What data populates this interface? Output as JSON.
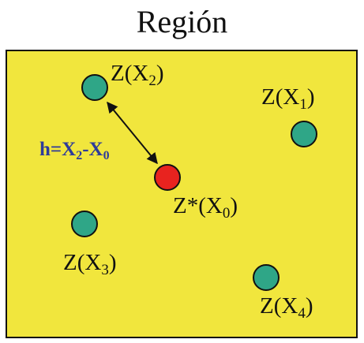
{
  "title": "Región",
  "colors": {
    "region_fill": "#f1e63d",
    "sample_point": "#2fa687",
    "estimate_point": "#e8231f",
    "h_label": "#2e3b9a",
    "text": "#111111"
  },
  "points": [
    {
      "id": "x2",
      "kind": "sample",
      "label_main": "Z(X",
      "label_sub": "2",
      "label_end": ")"
    },
    {
      "id": "x1",
      "kind": "sample",
      "label_main": "Z(X",
      "label_sub": "1",
      "label_end": ")"
    },
    {
      "id": "x0",
      "kind": "estimate",
      "label_main": "Z*(X",
      "label_sub": "0",
      "label_end": ")"
    },
    {
      "id": "x3",
      "kind": "sample",
      "label_main": "Z(X",
      "label_sub": "3",
      "label_end": ")"
    },
    {
      "id": "x4",
      "kind": "sample",
      "label_main": "Z(X",
      "label_sub": "4",
      "label_end": ")"
    }
  ],
  "distance_label": {
    "prefix": "h=X",
    "sub_a": "2",
    "middle": "-X",
    "sub_b": "0"
  }
}
